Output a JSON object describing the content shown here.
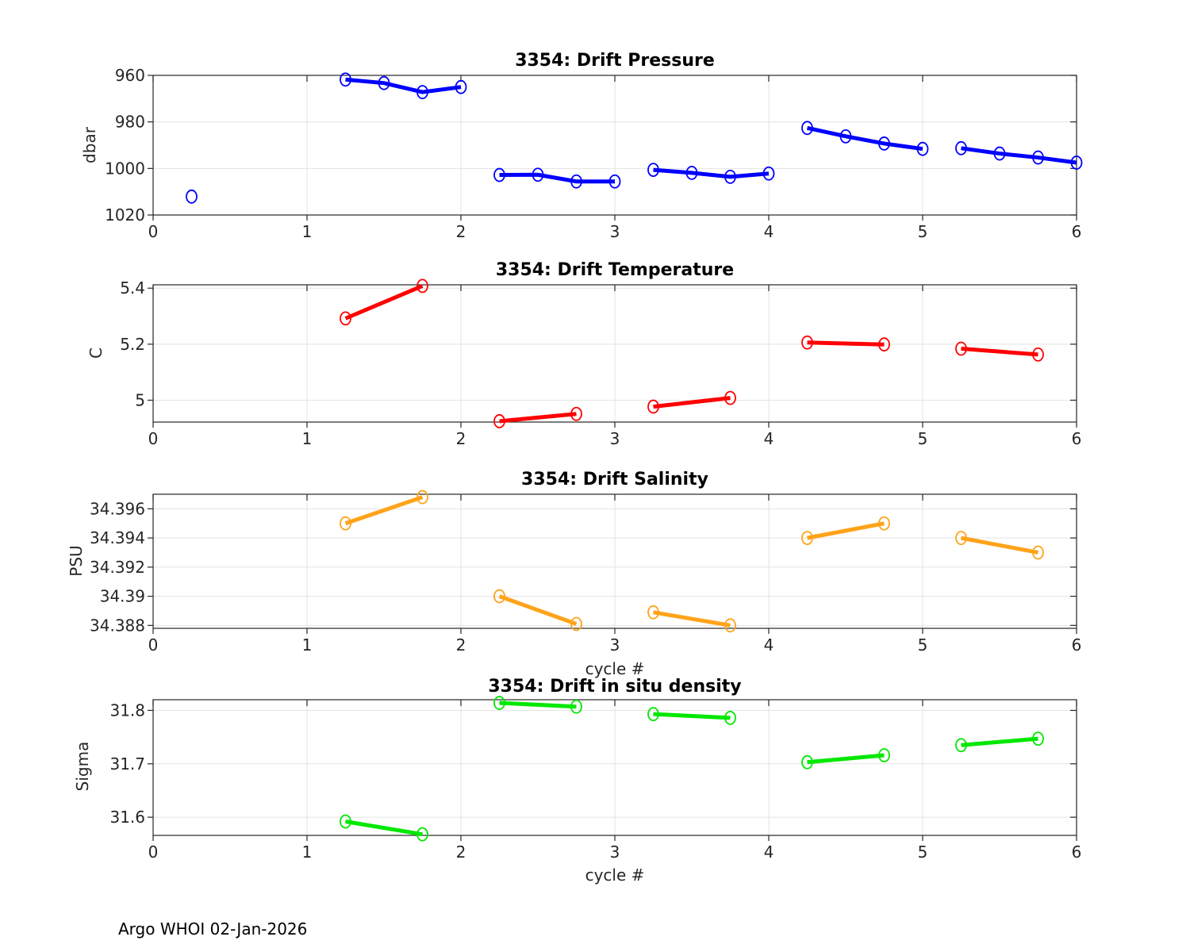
{
  "figure": {
    "background": "#ffffff"
  },
  "footer": {
    "credit": "Argo WHOI 02-Jan-2026"
  },
  "chart_data": [
    {
      "id": "pressure",
      "type": "line",
      "title": "3354: Drift Pressure",
      "ylabel": "dbar",
      "xlabel": "",
      "color": "#0000ff",
      "xlim": [
        0,
        6
      ],
      "ylim": [
        960,
        1020
      ],
      "y_reversed": true,
      "grid": true,
      "xticks": [
        0,
        1,
        2,
        3,
        4,
        5,
        6
      ],
      "xtick_labels": [
        "0",
        "1",
        "2",
        "3",
        "4",
        "5",
        "6"
      ],
      "yticks": [
        960,
        980,
        1000,
        1020
      ],
      "ytick_labels": [
        "960",
        "980",
        "1000",
        "1020"
      ],
      "segments": [
        [
          [
            0.25,
            1012.1
          ]
        ],
        [
          [
            1.25,
            961.8
          ],
          [
            1.5,
            963.3
          ],
          [
            1.75,
            967.2
          ],
          [
            2,
            965.0
          ]
        ],
        [
          [
            2.25,
            1002.8
          ],
          [
            2.5,
            1002.7
          ],
          [
            2.75,
            1005.6
          ],
          [
            3,
            1005.6
          ]
        ],
        [
          [
            3.25,
            1000.6
          ],
          [
            3.5,
            1001.9
          ],
          [
            3.75,
            1003.6
          ],
          [
            4,
            1002.2
          ]
        ],
        [
          [
            4.25,
            982.6
          ],
          [
            4.5,
            986.2
          ],
          [
            4.75,
            989.3
          ],
          [
            5,
            991.6
          ]
        ],
        [
          [
            5.25,
            991.3
          ],
          [
            5.5,
            993.6
          ],
          [
            5.75,
            995.3
          ],
          [
            6,
            997.5
          ]
        ]
      ]
    },
    {
      "id": "temperature",
      "type": "line",
      "title": "3354: Drift Temperature",
      "ylabel": "C",
      "xlabel": "",
      "color": "#ff0000",
      "xlim": [
        0,
        6
      ],
      "ylim": [
        4.922,
        5.412
      ],
      "y_reversed": false,
      "grid": true,
      "xticks": [
        0,
        1,
        2,
        3,
        4,
        5,
        6
      ],
      "xtick_labels": [
        "0",
        "1",
        "2",
        "3",
        "4",
        "5",
        "6"
      ],
      "yticks": [
        5,
        5.2,
        5.4
      ],
      "ytick_labels": [
        "5",
        "5.2",
        "5.4"
      ],
      "segments": [
        [
          [
            1.25,
            5.292
          ],
          [
            1.75,
            5.408
          ]
        ],
        [
          [
            2.25,
            4.925
          ],
          [
            2.75,
            4.951
          ]
        ],
        [
          [
            3.25,
            4.977
          ],
          [
            3.75,
            5.008
          ]
        ],
        [
          [
            4.25,
            5.206
          ],
          [
            4.75,
            5.199
          ]
        ],
        [
          [
            5.25,
            5.184
          ],
          [
            5.75,
            5.163
          ]
        ]
      ]
    },
    {
      "id": "salinity",
      "type": "line",
      "title": "3354: Drift Salinity",
      "ylabel": "PSU",
      "xlabel": "cycle #",
      "color": "#ffa319",
      "xlim": [
        0,
        6
      ],
      "ylim": [
        34.3878,
        34.397
      ],
      "y_reversed": false,
      "grid": true,
      "xticks": [
        0,
        1,
        2,
        3,
        4,
        5,
        6
      ],
      "xtick_labels": [
        "0",
        "1",
        "2",
        "3",
        "4",
        "5",
        "6"
      ],
      "yticks": [
        34.388,
        34.39,
        34.392,
        34.394,
        34.396
      ],
      "ytick_labels": [
        "34.388",
        "34.39",
        "34.392",
        "34.394",
        "34.396"
      ],
      "segments": [
        [
          [
            1.25,
            34.395
          ],
          [
            1.75,
            34.3968
          ]
        ],
        [
          [
            2.25,
            34.39
          ],
          [
            2.75,
            34.3881
          ]
        ],
        [
          [
            3.25,
            34.3889
          ],
          [
            3.75,
            34.388
          ]
        ],
        [
          [
            4.25,
            34.394
          ],
          [
            4.75,
            34.395
          ]
        ],
        [
          [
            5.25,
            34.394
          ],
          [
            5.75,
            34.393
          ]
        ]
      ]
    },
    {
      "id": "density",
      "type": "line",
      "title": "3354: Drift in situ density",
      "ylabel": "Sigma",
      "xlabel": "cycle #",
      "color": "#00e800",
      "xlim": [
        0,
        6
      ],
      "ylim": [
        31.566,
        31.82
      ],
      "y_reversed": false,
      "grid": true,
      "xticks": [
        0,
        1,
        2,
        3,
        4,
        5,
        6
      ],
      "xtick_labels": [
        "0",
        "1",
        "2",
        "3",
        "4",
        "5",
        "6"
      ],
      "yticks": [
        31.6,
        31.7,
        31.8
      ],
      "ytick_labels": [
        "31.6",
        "31.7",
        "31.8"
      ],
      "segments": [
        [
          [
            1.25,
            31.592
          ],
          [
            1.75,
            31.568
          ]
        ],
        [
          [
            2.25,
            31.814
          ],
          [
            2.75,
            31.807
          ]
        ],
        [
          [
            3.25,
            31.793
          ],
          [
            3.75,
            31.786
          ]
        ],
        [
          [
            4.25,
            31.703
          ],
          [
            4.75,
            31.716
          ]
        ],
        [
          [
            5.25,
            31.735
          ],
          [
            5.75,
            31.747
          ]
        ]
      ]
    }
  ]
}
